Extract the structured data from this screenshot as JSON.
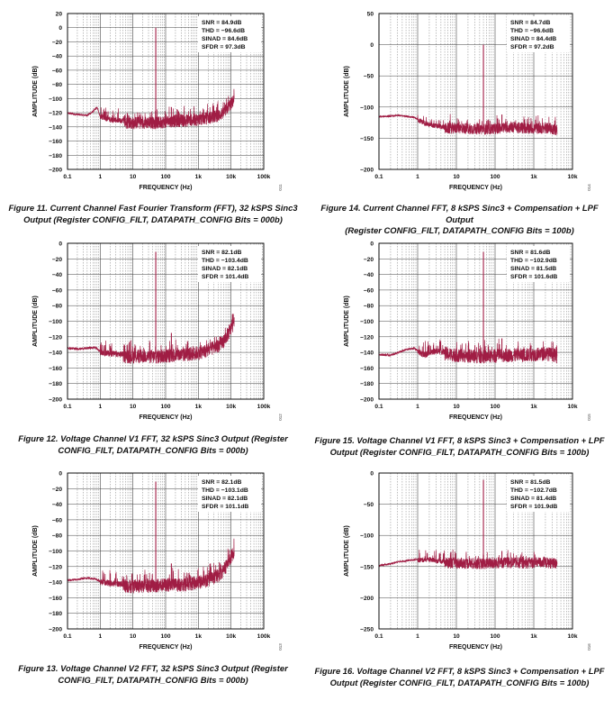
{
  "colors": {
    "trace": "#a01d44",
    "grid": "#333333",
    "axis": "#000000"
  },
  "common": {
    "xlabel": "FREQUENCY (Hz)",
    "ylabel": "AMPLITUDE (dB)"
  },
  "chart_data": [
    {
      "type": "line",
      "scale_x": "log",
      "xlabel": "FREQUENCY (Hz)",
      "ylabel": "AMPLITUDE (dB)",
      "xlim": [
        0.1,
        100000
      ],
      "ylim": [
        -200,
        20
      ],
      "x_ticks": [
        "0.1",
        "1",
        "10",
        "100",
        "1k",
        "10k",
        "100k"
      ],
      "y_ticks": [
        "20",
        "0",
        "−20",
        "−40",
        "−60",
        "−80",
        "−100",
        "−120",
        "−140",
        "−160",
        "−180",
        "−200"
      ],
      "stats": [
        "SNR = 84.9dB",
        "THD = −96.6dB",
        "SINAD = 84.6dB",
        "SFDR = 97.3dB"
      ],
      "fig_id": "011",
      "caption": [
        "Figure 11. Current Channel Fast Fourier Transform (FFT), 32 kSPS Sinc3",
        "Output (Register CONFIG_FILT, DATAPATH_CONFIG Bits = 000b)"
      ],
      "series": [
        {
          "x": [
            0.1,
            0.2,
            0.4,
            0.6,
            0.8,
            1,
            2,
            5,
            10,
            20,
            50,
            100,
            200,
            500,
            1000,
            2000,
            4000,
            6000,
            8000,
            10000,
            12000
          ],
          "y": [
            -120,
            -122,
            -123,
            -118,
            -112,
            -124,
            -128,
            -130,
            -131,
            -130,
            -131,
            -129,
            -128,
            -127,
            -126,
            -124,
            -121,
            -116,
            -109,
            -104,
            -99
          ]
        }
      ],
      "peaks": [
        {
          "x": 50,
          "y": 0
        },
        {
          "x": 150,
          "y": -112
        },
        {
          "x": 250,
          "y": -118
        }
      ],
      "xmax": 12500
    },
    {
      "type": "line",
      "scale_x": "log",
      "xlabel": "FREQUENCY (Hz)",
      "ylabel": "AMPLITUDE (dB)",
      "xlim": [
        0.1,
        10000
      ],
      "ylim": [
        -200,
        50
      ],
      "x_ticks": [
        "0.1",
        "1",
        "10",
        "100",
        "1k",
        "10k"
      ],
      "y_ticks": [
        "50",
        "0",
        "−50",
        "−100",
        "−150",
        "−200"
      ],
      "stats": [
        "SNR = 84.7dB",
        "THD = −96.6dB",
        "SINAD = 84.4dB",
        "SFDR = 97.2dB"
      ],
      "fig_id": "014",
      "caption": [
        "Figure 14. Current Channel FFT, 8 kSPS Sinc3 + Compensation + LPF Output",
        "(Register CONFIG_FILT, DATAPATH_CONFIG Bits = 100b)"
      ],
      "series": [
        {
          "x": [
            0.1,
            0.2,
            0.3,
            0.5,
            0.8,
            1,
            2,
            5,
            10,
            20,
            50,
            100,
            200,
            500,
            1000,
            2000,
            3000,
            3800
          ],
          "y": [
            -115,
            -114,
            -113,
            -114,
            -116,
            -119,
            -127,
            -131,
            -130,
            -131,
            -132,
            -131,
            -129,
            -130,
            -131,
            -130,
            -131,
            -133
          ]
        }
      ],
      "peaks": [
        {
          "x": 50,
          "y": 0
        },
        {
          "x": 150,
          "y": -112
        }
      ],
      "xmax": 4000
    },
    {
      "type": "line",
      "scale_x": "log",
      "xlabel": "FREQUENCY (Hz)",
      "ylabel": "AMPLITUDE (dB)",
      "xlim": [
        0.1,
        100000
      ],
      "ylim": [
        -200,
        0
      ],
      "x_ticks": [
        "0.1",
        "1",
        "10",
        "100",
        "1k",
        "10k",
        "100k"
      ],
      "y_ticks": [
        "0",
        "−20",
        "−40",
        "−60",
        "−80",
        "−100",
        "−120",
        "−140",
        "−160",
        "−180",
        "−200"
      ],
      "stats": [
        "SNR = 82.1dB",
        "THD = −103.4dB",
        "SINAD = 82.1dB",
        "SFDR = 101.4dB"
      ],
      "fig_id": "012",
      "caption": [
        "Figure 12. Voltage Channel V1 FFT, 32 kSPS Sinc3 Output (Register",
        "CONFIG_FILT, DATAPATH_CONFIG Bits = 000b)"
      ],
      "series": [
        {
          "x": [
            0.1,
            0.2,
            0.4,
            0.7,
            1,
            2,
            5,
            10,
            20,
            50,
            100,
            200,
            500,
            1000,
            2000,
            4000,
            6000,
            8000,
            10000,
            12000
          ],
          "y": [
            -134,
            -135,
            -134,
            -133,
            -138,
            -140,
            -141,
            -142,
            -141,
            -142,
            -141,
            -140,
            -139,
            -137,
            -134,
            -128,
            -122,
            -113,
            -106,
            -99
          ]
        }
      ],
      "peaks": [
        {
          "x": 50,
          "y": -11
        },
        {
          "x": 150,
          "y": -115
        }
      ],
      "xmax": 12500
    },
    {
      "type": "line",
      "scale_x": "log",
      "xlabel": "FREQUENCY (Hz)",
      "ylabel": "AMPLITUDE (dB)",
      "xlim": [
        0.1,
        10000
      ],
      "ylim": [
        -200,
        0
      ],
      "x_ticks": [
        "0.1",
        "1",
        "10",
        "100",
        "1k",
        "10k"
      ],
      "y_ticks": [
        "0",
        "−20",
        "−40",
        "−60",
        "−80",
        "−100",
        "−120",
        "−140",
        "−160",
        "−180",
        "−200"
      ],
      "stats": [
        "SNR = 81.6dB",
        "THD = −102.9dB",
        "SINAD = 81.5dB",
        "SFDR = 101.6dB"
      ],
      "fig_id": "015",
      "caption": [
        "Figure 15. Voltage Channel V1 FFT, 8 kSPS Sinc3 + Compensation + LPF",
        "Output (Register CONFIG_FILT, DATAPATH_CONFIG Bits = 100b)"
      ],
      "series": [
        {
          "x": [
            0.1,
            0.2,
            0.3,
            0.5,
            0.8,
            1,
            1.5,
            2,
            3,
            5,
            10,
            20,
            50,
            100,
            200,
            500,
            1000,
            2000,
            3000,
            3800
          ],
          "y": [
            -142,
            -143,
            -140,
            -136,
            -134,
            -137,
            -142,
            -139,
            -136,
            -138,
            -140,
            -141,
            -142,
            -141,
            -140,
            -140,
            -139,
            -138,
            -139,
            -141
          ]
        }
      ],
      "peaks": [
        {
          "x": 50,
          "y": -11
        },
        {
          "x": 150,
          "y": -122
        }
      ],
      "xmax": 4000
    },
    {
      "type": "line",
      "scale_x": "log",
      "xlabel": "FREQUENCY (Hz)",
      "ylabel": "AMPLITUDE (dB)",
      "xlim": [
        0.1,
        100000
      ],
      "ylim": [
        -200,
        0
      ],
      "x_ticks": [
        "0.1",
        "1",
        "10",
        "100",
        "1k",
        "10k",
        "100k"
      ],
      "y_ticks": [
        "0",
        "−20",
        "−40",
        "−60",
        "−80",
        "−100",
        "−120",
        "−140",
        "−160",
        "−180",
        "−200"
      ],
      "stats": [
        "SNR = 82.1dB",
        "THD = −103.1dB",
        "SINAD = 82.1dB",
        "SFDR = 101.1dB"
      ],
      "fig_id": "013",
      "caption": [
        "Figure 13. Voltage Channel V2 FFT, 32 kSPS Sinc3 Output (Register",
        "CONFIG_FILT, DATAPATH_CONFIG Bits = 000b)"
      ],
      "series": [
        {
          "x": [
            0.1,
            0.2,
            0.4,
            0.7,
            1,
            2,
            5,
            10,
            20,
            50,
            100,
            200,
            500,
            1000,
            2000,
            4000,
            6000,
            8000,
            10000,
            12000
          ],
          "y": [
            -137,
            -136,
            -134,
            -135,
            -138,
            -140,
            -141,
            -142,
            -141,
            -141,
            -140,
            -140,
            -139,
            -137,
            -134,
            -128,
            -121,
            -112,
            -104,
            -98
          ]
        }
      ],
      "peaks": [
        {
          "x": 50,
          "y": -11
        },
        {
          "x": 150,
          "y": -116
        }
      ],
      "xmax": 12500
    },
    {
      "type": "line",
      "scale_x": "log",
      "xlabel": "FREQUENCY (Hz)",
      "ylabel": "AMPLITUDE (dB)",
      "xlim": [
        0.1,
        10000
      ],
      "ylim": [
        -250,
        0
      ],
      "x_ticks": [
        "0.1",
        "1",
        "10",
        "100",
        "1k",
        "10k"
      ],
      "y_ticks": [
        "0",
        "−50",
        "−100",
        "−150",
        "−200",
        "−250"
      ],
      "stats": [
        "SNR = 81.5dB",
        "THD = −102.7dB",
        "SINAD = 81.4dB",
        "SFDR = 101.9dB"
      ],
      "fig_id": "016",
      "caption": [
        "Figure 16. Voltage Channel V2 FFT, 8 kSPS Sinc3 + Compensation + LPF",
        "Output (Register CONFIG_FILT, DATAPATH_CONFIG Bits = 100b)"
      ],
      "series": [
        {
          "x": [
            0.1,
            0.2,
            0.3,
            0.5,
            1,
            2,
            3,
            5,
            10,
            20,
            50,
            100,
            200,
            500,
            1000,
            2000,
            3000,
            3800
          ],
          "y": [
            -148,
            -145,
            -142,
            -140,
            -138,
            -137,
            -139,
            -140,
            -141,
            -141,
            -142,
            -141,
            -140,
            -141,
            -140,
            -140,
            -141,
            -143
          ]
        }
      ],
      "peaks": [
        {
          "x": 50,
          "y": -11
        },
        {
          "x": 150,
          "y": -125
        }
      ],
      "xmax": 4000
    }
  ]
}
